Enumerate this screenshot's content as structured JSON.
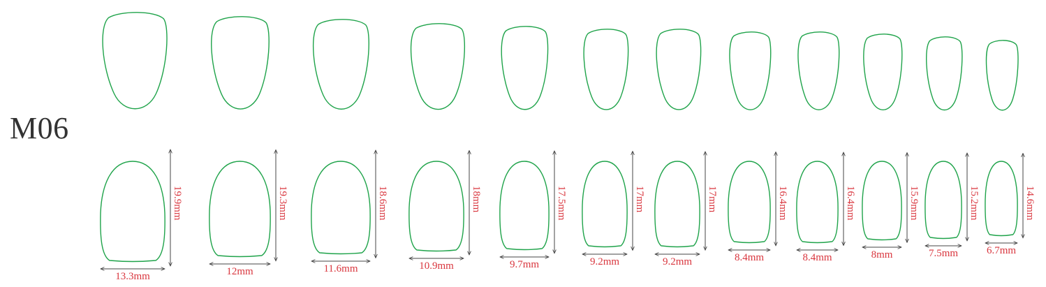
{
  "title": "M06",
  "colors": {
    "outline": "#1fa34a",
    "dimension_text": "#d9363e",
    "arrow": "#444444",
    "title": "#333333"
  },
  "nails": [
    {
      "length_label": "19.9mm",
      "width_label": "13.3mm",
      "length_mm": 19.9,
      "width_mm": 13.3
    },
    {
      "length_label": "19.3mm",
      "width_label": "12mm",
      "length_mm": 19.3,
      "width_mm": 12
    },
    {
      "length_label": "18.6mm",
      "width_label": "11.6mm",
      "length_mm": 18.6,
      "width_mm": 11.6
    },
    {
      "length_label": "18mm",
      "width_label": "10.9mm",
      "length_mm": 18,
      "width_mm": 10.9
    },
    {
      "length_label": "17.5mm",
      "width_label": "9.7mm",
      "length_mm": 17.5,
      "width_mm": 9.7
    },
    {
      "length_label": "17mm",
      "width_label": "9.2mm",
      "length_mm": 17,
      "width_mm": 9.2
    },
    {
      "length_label": "17mm",
      "width_label": "9.2mm",
      "length_mm": 17,
      "width_mm": 9.2
    },
    {
      "length_label": "16.4mm",
      "width_label": "8.4mm",
      "length_mm": 16.4,
      "width_mm": 8.4
    },
    {
      "length_label": "16.4mm",
      "width_label": "8.4mm",
      "length_mm": 16.4,
      "width_mm": 8.4
    },
    {
      "length_label": "15.9mm",
      "width_label": "8mm",
      "length_mm": 15.9,
      "width_mm": 8
    },
    {
      "length_label": "15.2mm",
      "width_label": "7.5mm",
      "length_mm": 15.2,
      "width_mm": 7.5
    },
    {
      "length_label": "14.6mm",
      "width_label": "6.7mm",
      "length_mm": 14.6,
      "width_mm": 6.7
    }
  ]
}
